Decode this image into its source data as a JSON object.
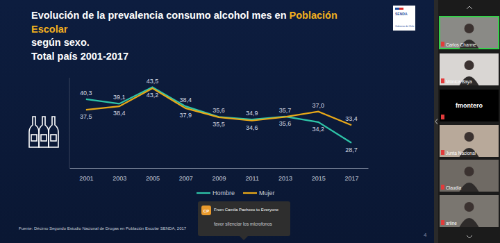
{
  "chart_data": {
    "type": "line",
    "title": "Evolución de la prevalencia consumo alcohol mes en Población Escolar según sexo.",
    "subtitle": "Total país 2001-2017",
    "title_highlight": "Población Escolar",
    "categories": [
      "2001",
      "2003",
      "2005",
      "2007",
      "2009",
      "2011",
      "2013",
      "2015",
      "2017"
    ],
    "series": [
      {
        "name": "Hombre",
        "color": "#2ec4a8",
        "values": [
          40.3,
          39.1,
          43.5,
          38.4,
          35.6,
          34.9,
          35.7,
          34.2,
          28.7
        ],
        "value_labels": [
          "40,3",
          "39,1",
          "43,5",
          "38,4",
          "35,6",
          "34,9",
          "35,7",
          "34,2",
          "28,7"
        ]
      },
      {
        "name": "Mujer",
        "color": "#e8a818",
        "values": [
          37.5,
          38.4,
          43.2,
          37.9,
          35.5,
          34.6,
          35.6,
          37.0,
          33.4
        ],
        "value_labels": [
          "37,5",
          "38,4",
          "43,2",
          "37,9",
          "35,5",
          "34,6",
          "35,6",
          "37,0",
          "33,4"
        ]
      }
    ],
    "ylim": [
      22,
      46
    ],
    "tick_labels": "x",
    "data_labels": true,
    "legend": "bottom",
    "source": "Fuente: Décimo Segundo Estudio Nacional de Drogas en Población Escolar SENDA, 2017"
  },
  "slide": {
    "page": 4,
    "logo": [
      "SENDA",
      "Gobierno de Chile"
    ]
  },
  "meeting": {
    "participants": [
      {
        "name": "Carlos Charme",
        "video": true,
        "active": true
      },
      {
        "name": "Mónica Baya",
        "video": true,
        "active": false
      },
      {
        "name": "fmontero",
        "video": false,
        "active": false
      },
      {
        "name": "Junta Nacional",
        "video": true,
        "active": false
      },
      {
        "name": "Claudia",
        "video": true,
        "active": false
      },
      {
        "name": "arline",
        "video": true,
        "active": false
      }
    ],
    "chat": {
      "initials": "CP",
      "header": "From Camila Pacheco to Everyone",
      "message": "favor silenciar los microfonos"
    }
  }
}
